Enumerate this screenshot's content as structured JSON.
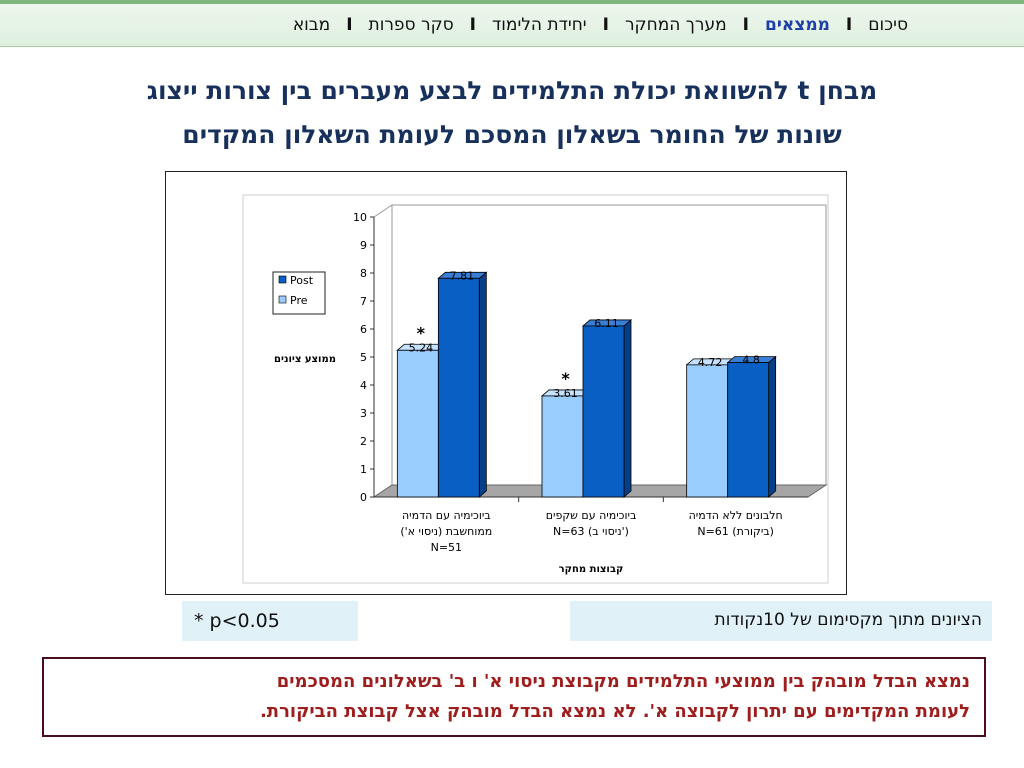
{
  "nav": {
    "items": [
      {
        "label": "מבוא",
        "active": false
      },
      {
        "label": "סקר ספרות",
        "active": false
      },
      {
        "label": "יחידת הלימוד",
        "active": false
      },
      {
        "label": "מערך המחקר",
        "active": false
      },
      {
        "label": "ממצאים",
        "active": true
      },
      {
        "label": "סיכום",
        "active": false
      }
    ],
    "separator": "I"
  },
  "title": {
    "line1": "מבחן t להשוואת יכולת התלמידים לבצע מעברים בין צורות ייצוג",
    "line2": "שונות של החומר בשאלון המסכם לעומת השאלון המקדים"
  },
  "chart_data": {
    "type": "bar",
    "categories": [
      [
        "ביוכימיה עם הדמיה",
        "ממוחשבת (ניסוי א')",
        "N=51"
      ],
      [
        "ביוכימיה עם שקפים",
        "N=63 (ניסוי ב')"
      ],
      [
        "חלבונים ללא הדמיה",
        "N=61 (ביקורת)"
      ]
    ],
    "series": [
      {
        "name": "Pre",
        "values": [
          5.24,
          3.61,
          4.72
        ],
        "color": "#99ccff"
      },
      {
        "name": "Post",
        "values": [
          7.81,
          6.11,
          4.8
        ],
        "color": "#0a5fc4"
      }
    ],
    "value_labels": [
      [
        "5.24",
        "3.61",
        "4.72"
      ],
      [
        "7.81",
        "6.11",
        "4.8"
      ]
    ],
    "significance": [
      "*",
      "*",
      ""
    ],
    "ylabel": "ממוצע ציונים",
    "xlabel": "קבוצות מחקר",
    "ylim": [
      0,
      10
    ],
    "yticks": [
      "0",
      "1",
      "2",
      "3",
      "4",
      "5",
      "6",
      "7",
      "8",
      "9",
      "10"
    ],
    "legend_order": [
      "Post",
      "Pre"
    ],
    "legend_position": "left",
    "grid": false,
    "three_d": true
  },
  "notes": {
    "significance": "* p<0.05",
    "scale": "הציונים מתוך מקסימום של 10נקודות"
  },
  "finding": {
    "line1": "נמצא הבדל מובהק בין ממוצעי התלמידים מקבוצת ניסוי א' ו ב' בשאלונים המסכמים",
    "line2": "לעומת המקדימים עם יתרון לקבוצה א'. לא נמצא הבדל מובהק אצל קבוצת הביקורת."
  }
}
